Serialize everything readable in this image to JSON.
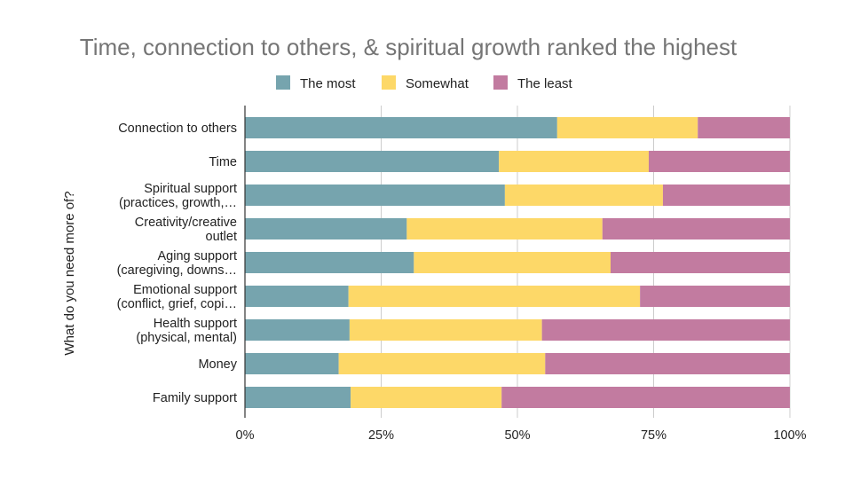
{
  "chart_data": {
    "type": "bar",
    "orientation": "horizontal",
    "stacked": "percent",
    "title": "Time, connection to others, & spiritual growth ranked the highest",
    "xlabel": "",
    "ylabel": "What do you need more of?",
    "xlim": [
      0,
      100
    ],
    "x_ticks": [
      "0%",
      "25%",
      "50%",
      "75%",
      "100%"
    ],
    "x_tick_values": [
      0,
      25,
      50,
      75,
      100
    ],
    "grid": true,
    "legend_position": "top-center",
    "categories": [
      [
        "Connection to others"
      ],
      [
        "Time"
      ],
      [
        "Spiritual support",
        "(practices, growth,…"
      ],
      [
        "Creativity/creative",
        "outlet"
      ],
      [
        "Aging support",
        "(caregiving, downs…"
      ],
      [
        "Emotional support",
        "(conflict, grief, copi…"
      ],
      [
        "Health support",
        "(physical, mental)"
      ],
      [
        "Money"
      ],
      [
        "Family support"
      ]
    ],
    "series": [
      {
        "name": "The most",
        "color": "#76A4AE",
        "values": [
          57.3,
          46.6,
          47.7,
          29.7,
          31.0,
          19.0,
          19.2,
          17.2,
          19.4
        ]
      },
      {
        "name": "Somewhat",
        "color": "#FDD868",
        "values": [
          25.8,
          27.5,
          29.0,
          35.9,
          36.1,
          53.5,
          35.3,
          37.9,
          27.7
        ]
      },
      {
        "name": "The least",
        "color": "#C27BA0",
        "values": [
          16.9,
          25.9,
          23.3,
          34.4,
          32.9,
          27.5,
          45.5,
          44.9,
          52.9
        ]
      }
    ]
  },
  "colors": {
    "gridline": "#CCCCCC",
    "axis": "#333333",
    "title": "#757575"
  }
}
